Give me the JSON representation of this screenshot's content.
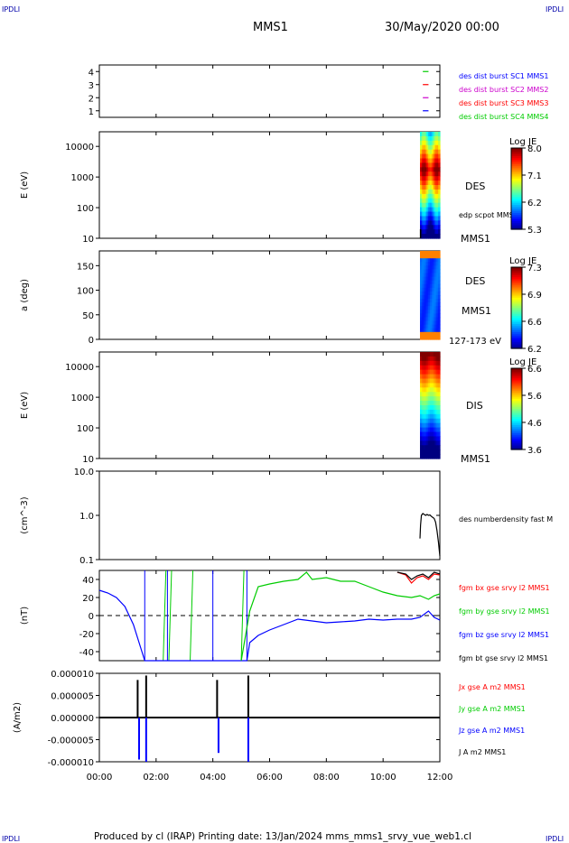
{
  "header": {
    "corner_tl": "IPDLI",
    "corner_tr": "IPDLI",
    "spacecraft": "MMS1",
    "datetime": "30/May/2020 00:00"
  },
  "footer": {
    "text": "Produced by cl (IRAP)   Printing date: 13/Jan/2024   mms_mms1_srvy_vue_web1.cl",
    "corner_bl": "IPDLI",
    "corner_br": "IPDLI"
  },
  "time_axis": {
    "ticks": [
      "00:00",
      "02:00",
      "04:00",
      "06:00",
      "08:00",
      "10:00",
      "12:00"
    ],
    "range_hours": [
      0,
      12
    ]
  },
  "colors": {
    "blue": "#0000ff",
    "magenta": "#cc00cc",
    "red": "#ff0000",
    "green": "#00cc00",
    "black": "#000000",
    "ipdli": "#0000aa"
  },
  "chart_data": [
    {
      "type": "scatter",
      "panel": "availability",
      "ylabel": "",
      "yticks": [
        "4",
        "3",
        "2",
        "1"
      ],
      "ylim": [
        0.5,
        4.5
      ],
      "legend": [
        {
          "label": "des dist burst SC1 MMS1",
          "color": "#0000ff"
        },
        {
          "label": "des dist burst SC2 MMS2",
          "color": "#cc00cc"
        },
        {
          "label": "des dist burst SC3 MMS3",
          "color": "#ff0000"
        },
        {
          "label": "des dist burst SC4 MMS4",
          "color": "#00cc00"
        }
      ],
      "series": [
        {
          "y": 4,
          "x": [
            11.4,
            11.6
          ],
          "color": "#00cc00"
        },
        {
          "y": 3,
          "x": [
            11.4,
            11.6
          ],
          "color": "#ff0000"
        },
        {
          "y": 2,
          "x": [
            11.4,
            11.6
          ],
          "color": "#cc00cc"
        },
        {
          "y": 1,
          "x": [
            11.4,
            11.6
          ],
          "color": "#0000ff"
        }
      ]
    },
    {
      "type": "heatmap",
      "panel": "des_energy",
      "ylabel": "E (eV)",
      "yticks": [
        "10000",
        "1000",
        "100",
        "10"
      ],
      "ylim_log": [
        10,
        30000
      ],
      "log_scale": true,
      "species_label": "DES",
      "overlay_label": "edp scpot MMS1",
      "sc_label": "MMS1",
      "colorbar": {
        "title": "Log JE",
        "ticks": [
          "8.0",
          "7.1",
          "6.2",
          "5.3"
        ],
        "range": [
          5.3,
          8.0
        ]
      },
      "x_range_hours": [
        11.3,
        12.0
      ]
    },
    {
      "type": "heatmap",
      "panel": "des_pitch",
      "ylabel": "a (deg)",
      "yticks": [
        "150",
        "100",
        "50",
        "0"
      ],
      "ylim": [
        0,
        180
      ],
      "species_label": "DES",
      "sc_label": "MMS1",
      "energy_label": "127-173 eV",
      "colorbar": {
        "title": "Log JE",
        "ticks": [
          "7.3",
          "6.9",
          "6.6",
          "6.2"
        ],
        "range": [
          6.2,
          7.3
        ]
      },
      "x_range_hours": [
        11.3,
        12.0
      ]
    },
    {
      "type": "heatmap",
      "panel": "dis_energy",
      "ylabel": "E (eV)",
      "yticks": [
        "10000",
        "1000",
        "100",
        "10"
      ],
      "ylim_log": [
        10,
        30000
      ],
      "log_scale": true,
      "species_label": "DIS",
      "sc_label": "MMS1",
      "colorbar": {
        "title": "Log JE",
        "ticks": [
          "6.6",
          "5.6",
          "4.6",
          "3.6"
        ],
        "range": [
          3.6,
          6.6
        ]
      },
      "x_range_hours": [
        11.3,
        12.0
      ]
    },
    {
      "type": "line",
      "panel": "density",
      "ylabel": "(cm^-3)",
      "yticks": [
        "10.0",
        "1.0",
        "0.1"
      ],
      "ylim_log": [
        0.1,
        10
      ],
      "log_scale": true,
      "legend": [
        {
          "label": "des numberdensity fast M",
          "color": "#000000"
        }
      ],
      "series": [
        {
          "name": "des numberdensity fast M",
          "color": "#000000",
          "x": [
            11.3,
            11.32,
            11.35,
            11.4,
            11.45,
            11.5,
            11.55,
            11.6,
            11.65,
            11.7,
            11.75,
            11.8,
            11.85,
            11.9,
            11.95,
            12.0
          ],
          "y": [
            0.3,
            0.6,
            1.0,
            1.1,
            1.05,
            1.0,
            1.05,
            1.0,
            1.02,
            0.95,
            0.9,
            0.85,
            0.7,
            0.45,
            0.25,
            0.12
          ]
        }
      ]
    },
    {
      "type": "line",
      "panel": "bfield",
      "ylabel": "(nT)",
      "yticks": [
        "40",
        "20",
        "0",
        "-20",
        "-40"
      ],
      "ylim": [
        -50,
        50
      ],
      "legend": [
        {
          "label": "fgm bx gse srvy l2 MMS1",
          "color": "#ff0000"
        },
        {
          "label": "fgm by gse srvy l2 MMS1",
          "color": "#00cc00"
        },
        {
          "label": "fgm bz gse srvy l2 MMS1",
          "color": "#0000ff"
        },
        {
          "label": "fgm bt gse srvy l2 MMS1",
          "color": "#000000"
        }
      ],
      "series": [
        {
          "name": "fgm bz gse srvy l2 MMS1",
          "color": "#0000ff",
          "x": [
            0,
            0.3,
            0.6,
            0.9,
            1.2,
            1.5,
            1.6,
            5.2,
            5.3,
            5.6,
            6.0,
            6.5,
            7.0,
            7.5,
            8.0,
            8.5,
            9.0,
            9.5,
            10.0,
            10.5,
            11.0,
            11.3,
            11.6,
            11.8,
            12.0
          ],
          "y": [
            28,
            25,
            20,
            10,
            -10,
            -40,
            -50,
            -50,
            -30,
            -22,
            -16,
            -10,
            -4,
            -6,
            -8,
            -7,
            -6,
            -4,
            -5,
            -4,
            -4,
            -2,
            5,
            -2,
            -5
          ]
        },
        {
          "name": "fgm by gse srvy l2 MMS1",
          "color": "#00cc00",
          "x": [
            5.0,
            5.3,
            5.6,
            6.0,
            6.5,
            7.0,
            7.3,
            7.5,
            8.0,
            8.5,
            9.0,
            9.5,
            10.0,
            10.5,
            11.0,
            11.3,
            11.6,
            11.8,
            12.0
          ],
          "y": [
            -50,
            5,
            32,
            35,
            38,
            40,
            48,
            40,
            42,
            38,
            38,
            32,
            26,
            22,
            20,
            22,
            18,
            22,
            24
          ]
        },
        {
          "name": "fgm bx gse srvy l2 MMS1",
          "color": "#ff0000",
          "x": [
            10.5,
            10.8,
            11.0,
            11.2,
            11.4,
            11.6,
            11.8,
            12.0
          ],
          "y": [
            48,
            45,
            36,
            42,
            44,
            40,
            46,
            45
          ]
        },
        {
          "name": "fgm bt gse srvy l2 MMS1",
          "color": "#000000",
          "x": [
            10.5,
            10.8,
            11.0,
            11.2,
            11.4,
            11.6,
            11.8,
            12.0
          ],
          "y": [
            48,
            46,
            40,
            44,
            46,
            42,
            48,
            46
          ]
        }
      ],
      "transitions_green": [
        2.25,
        2.45,
        3.2,
        5.0
      ],
      "transitions_blue": [
        1.6,
        2.4,
        4.0,
        5.2
      ]
    },
    {
      "type": "line",
      "panel": "current",
      "ylabel": "(A/m2)",
      "yticks": [
        "0.000010",
        "0.000005",
        "0.000000",
        "-0.000005",
        "-0.000010"
      ],
      "ylim": [
        -1e-05,
        1e-05
      ],
      "legend": [
        {
          "label": "Jx gse A m2 MMS1",
          "color": "#ff0000"
        },
        {
          "label": "Jy gse A m2 MMS1",
          "color": "#00cc00"
        },
        {
          "label": "Jz gse A m2 MMS1",
          "color": "#0000ff"
        },
        {
          "label": "J A m2 MMS1",
          "color": "#000000"
        }
      ],
      "spikes": [
        {
          "x": 1.35,
          "y": 8.5e-06,
          "color": "#000000"
        },
        {
          "x": 1.4,
          "y": -9.5e-06,
          "color": "#0000ff"
        },
        {
          "x": 1.65,
          "y": 9.5e-06,
          "color": "#000000"
        },
        {
          "x": 1.65,
          "y": -1e-05,
          "color": "#0000ff"
        },
        {
          "x": 4.15,
          "y": 8.5e-06,
          "color": "#000000"
        },
        {
          "x": 4.2,
          "y": -8e-06,
          "color": "#0000ff"
        },
        {
          "x": 5.25,
          "y": 9.5e-06,
          "color": "#000000"
        },
        {
          "x": 5.25,
          "y": -1e-05,
          "color": "#0000ff"
        }
      ]
    }
  ]
}
